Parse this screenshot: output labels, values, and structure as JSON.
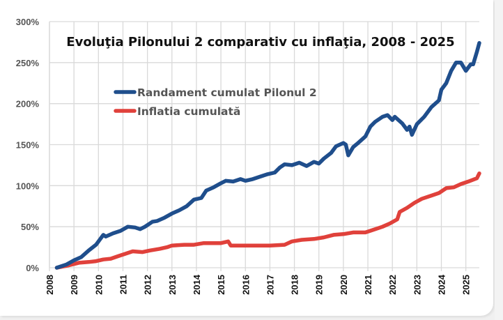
{
  "chart_data": {
    "type": "line",
    "title": "Evoluţia Pilonului 2 comparativ cu inflaţia, 2008 - 2025",
    "xlabel": "",
    "ylabel": "",
    "xlim": [
      2008,
      2025.55
    ],
    "ylim": [
      0,
      300
    ],
    "grid": true,
    "legend_position": "upper-left-inside",
    "x_ticks": [
      "2008",
      "2009",
      "2010",
      "2011",
      "2012",
      "2013",
      "2014",
      "2015",
      "2016",
      "2017",
      "2018",
      "2019",
      "2020",
      "2021",
      "2022",
      "2023",
      "2024",
      "2025"
    ],
    "y_ticks": [
      "0%",
      "50%",
      "100%",
      "150%",
      "200%",
      "250%",
      "300%"
    ],
    "series": [
      {
        "name": "Randament cumulat Pilonul 2",
        "color": "#1f4e8c",
        "points": [
          [
            2008.3,
            0
          ],
          [
            2008.7,
            4
          ],
          [
            2009.0,
            9
          ],
          [
            2009.3,
            13
          ],
          [
            2009.6,
            21
          ],
          [
            2009.9,
            28
          ],
          [
            2010.2,
            40
          ],
          [
            2010.3,
            38
          ],
          [
            2010.6,
            42
          ],
          [
            2010.9,
            45
          ],
          [
            2011.2,
            50
          ],
          [
            2011.5,
            49
          ],
          [
            2011.7,
            47
          ],
          [
            2011.9,
            50
          ],
          [
            2012.2,
            56
          ],
          [
            2012.4,
            57
          ],
          [
            2012.7,
            61
          ],
          [
            2013.0,
            66
          ],
          [
            2013.3,
            70
          ],
          [
            2013.6,
            75
          ],
          [
            2013.9,
            83
          ],
          [
            2014.2,
            85
          ],
          [
            2014.4,
            94
          ],
          [
            2014.7,
            98
          ],
          [
            2015.0,
            103
          ],
          [
            2015.2,
            106
          ],
          [
            2015.5,
            105
          ],
          [
            2015.8,
            108
          ],
          [
            2016.0,
            106
          ],
          [
            2016.3,
            108
          ],
          [
            2016.6,
            111
          ],
          [
            2016.9,
            114
          ],
          [
            2017.2,
            116
          ],
          [
            2017.4,
            122
          ],
          [
            2017.6,
            126
          ],
          [
            2017.9,
            125
          ],
          [
            2018.2,
            128
          ],
          [
            2018.5,
            124
          ],
          [
            2018.8,
            129
          ],
          [
            2019.0,
            127
          ],
          [
            2019.2,
            133
          ],
          [
            2019.5,
            140
          ],
          [
            2019.7,
            148
          ],
          [
            2020.0,
            152
          ],
          [
            2020.1,
            150
          ],
          [
            2020.2,
            137
          ],
          [
            2020.4,
            147
          ],
          [
            2020.6,
            152
          ],
          [
            2020.9,
            160
          ],
          [
            2021.1,
            172
          ],
          [
            2021.3,
            178
          ],
          [
            2021.6,
            184
          ],
          [
            2021.8,
            186
          ],
          [
            2022.0,
            180
          ],
          [
            2022.1,
            184
          ],
          [
            2022.4,
            176
          ],
          [
            2022.6,
            168
          ],
          [
            2022.7,
            172
          ],
          [
            2022.8,
            162
          ],
          [
            2023.0,
            175
          ],
          [
            2023.3,
            184
          ],
          [
            2023.6,
            196
          ],
          [
            2023.9,
            204
          ],
          [
            2024.0,
            217
          ],
          [
            2024.2,
            225
          ],
          [
            2024.4,
            240
          ],
          [
            2024.6,
            250
          ],
          [
            2024.8,
            250
          ],
          [
            2025.0,
            240
          ],
          [
            2025.2,
            248
          ],
          [
            2025.3,
            248
          ],
          [
            2025.45,
            263
          ],
          [
            2025.55,
            274
          ]
        ]
      },
      {
        "name": "Inflatia cumulată",
        "color": "#e0413b",
        "points": [
          [
            2008.3,
            0
          ],
          [
            2008.8,
            3
          ],
          [
            2009.2,
            6
          ],
          [
            2009.6,
            7
          ],
          [
            2009.9,
            8
          ],
          [
            2010.2,
            10
          ],
          [
            2010.5,
            11
          ],
          [
            2010.8,
            14
          ],
          [
            2011.1,
            17
          ],
          [
            2011.4,
            20
          ],
          [
            2011.8,
            19
          ],
          [
            2012.1,
            21
          ],
          [
            2012.5,
            23
          ],
          [
            2012.8,
            25
          ],
          [
            2013.0,
            27
          ],
          [
            2013.5,
            28
          ],
          [
            2013.9,
            28
          ],
          [
            2014.3,
            30
          ],
          [
            2014.8,
            30
          ],
          [
            2015.0,
            30
          ],
          [
            2015.3,
            32
          ],
          [
            2015.4,
            27
          ],
          [
            2016.0,
            27
          ],
          [
            2016.5,
            27
          ],
          [
            2017.0,
            27
          ],
          [
            2017.6,
            28
          ],
          [
            2017.9,
            32
          ],
          [
            2018.3,
            34
          ],
          [
            2018.8,
            35
          ],
          [
            2019.2,
            37
          ],
          [
            2019.6,
            40
          ],
          [
            2020.0,
            41
          ],
          [
            2020.4,
            43
          ],
          [
            2020.9,
            43
          ],
          [
            2021.2,
            46
          ],
          [
            2021.6,
            50
          ],
          [
            2021.9,
            54
          ],
          [
            2022.2,
            59
          ],
          [
            2022.3,
            68
          ],
          [
            2022.6,
            73
          ],
          [
            2022.9,
            79
          ],
          [
            2023.2,
            84
          ],
          [
            2023.6,
            88
          ],
          [
            2023.9,
            91
          ],
          [
            2024.2,
            97
          ],
          [
            2024.5,
            98
          ],
          [
            2024.8,
            102
          ],
          [
            2025.1,
            105
          ],
          [
            2025.45,
            109
          ],
          [
            2025.55,
            115
          ]
        ]
      }
    ]
  },
  "legend": {
    "items": [
      {
        "label": "Randament cumulat Pilonul 2",
        "color": "#1f4e8c"
      },
      {
        "label": "Inflatia cumulată",
        "color": "#e0413b"
      }
    ]
  },
  "colors": {
    "grid": "#d9d9d9",
    "background": "#ffffff"
  }
}
